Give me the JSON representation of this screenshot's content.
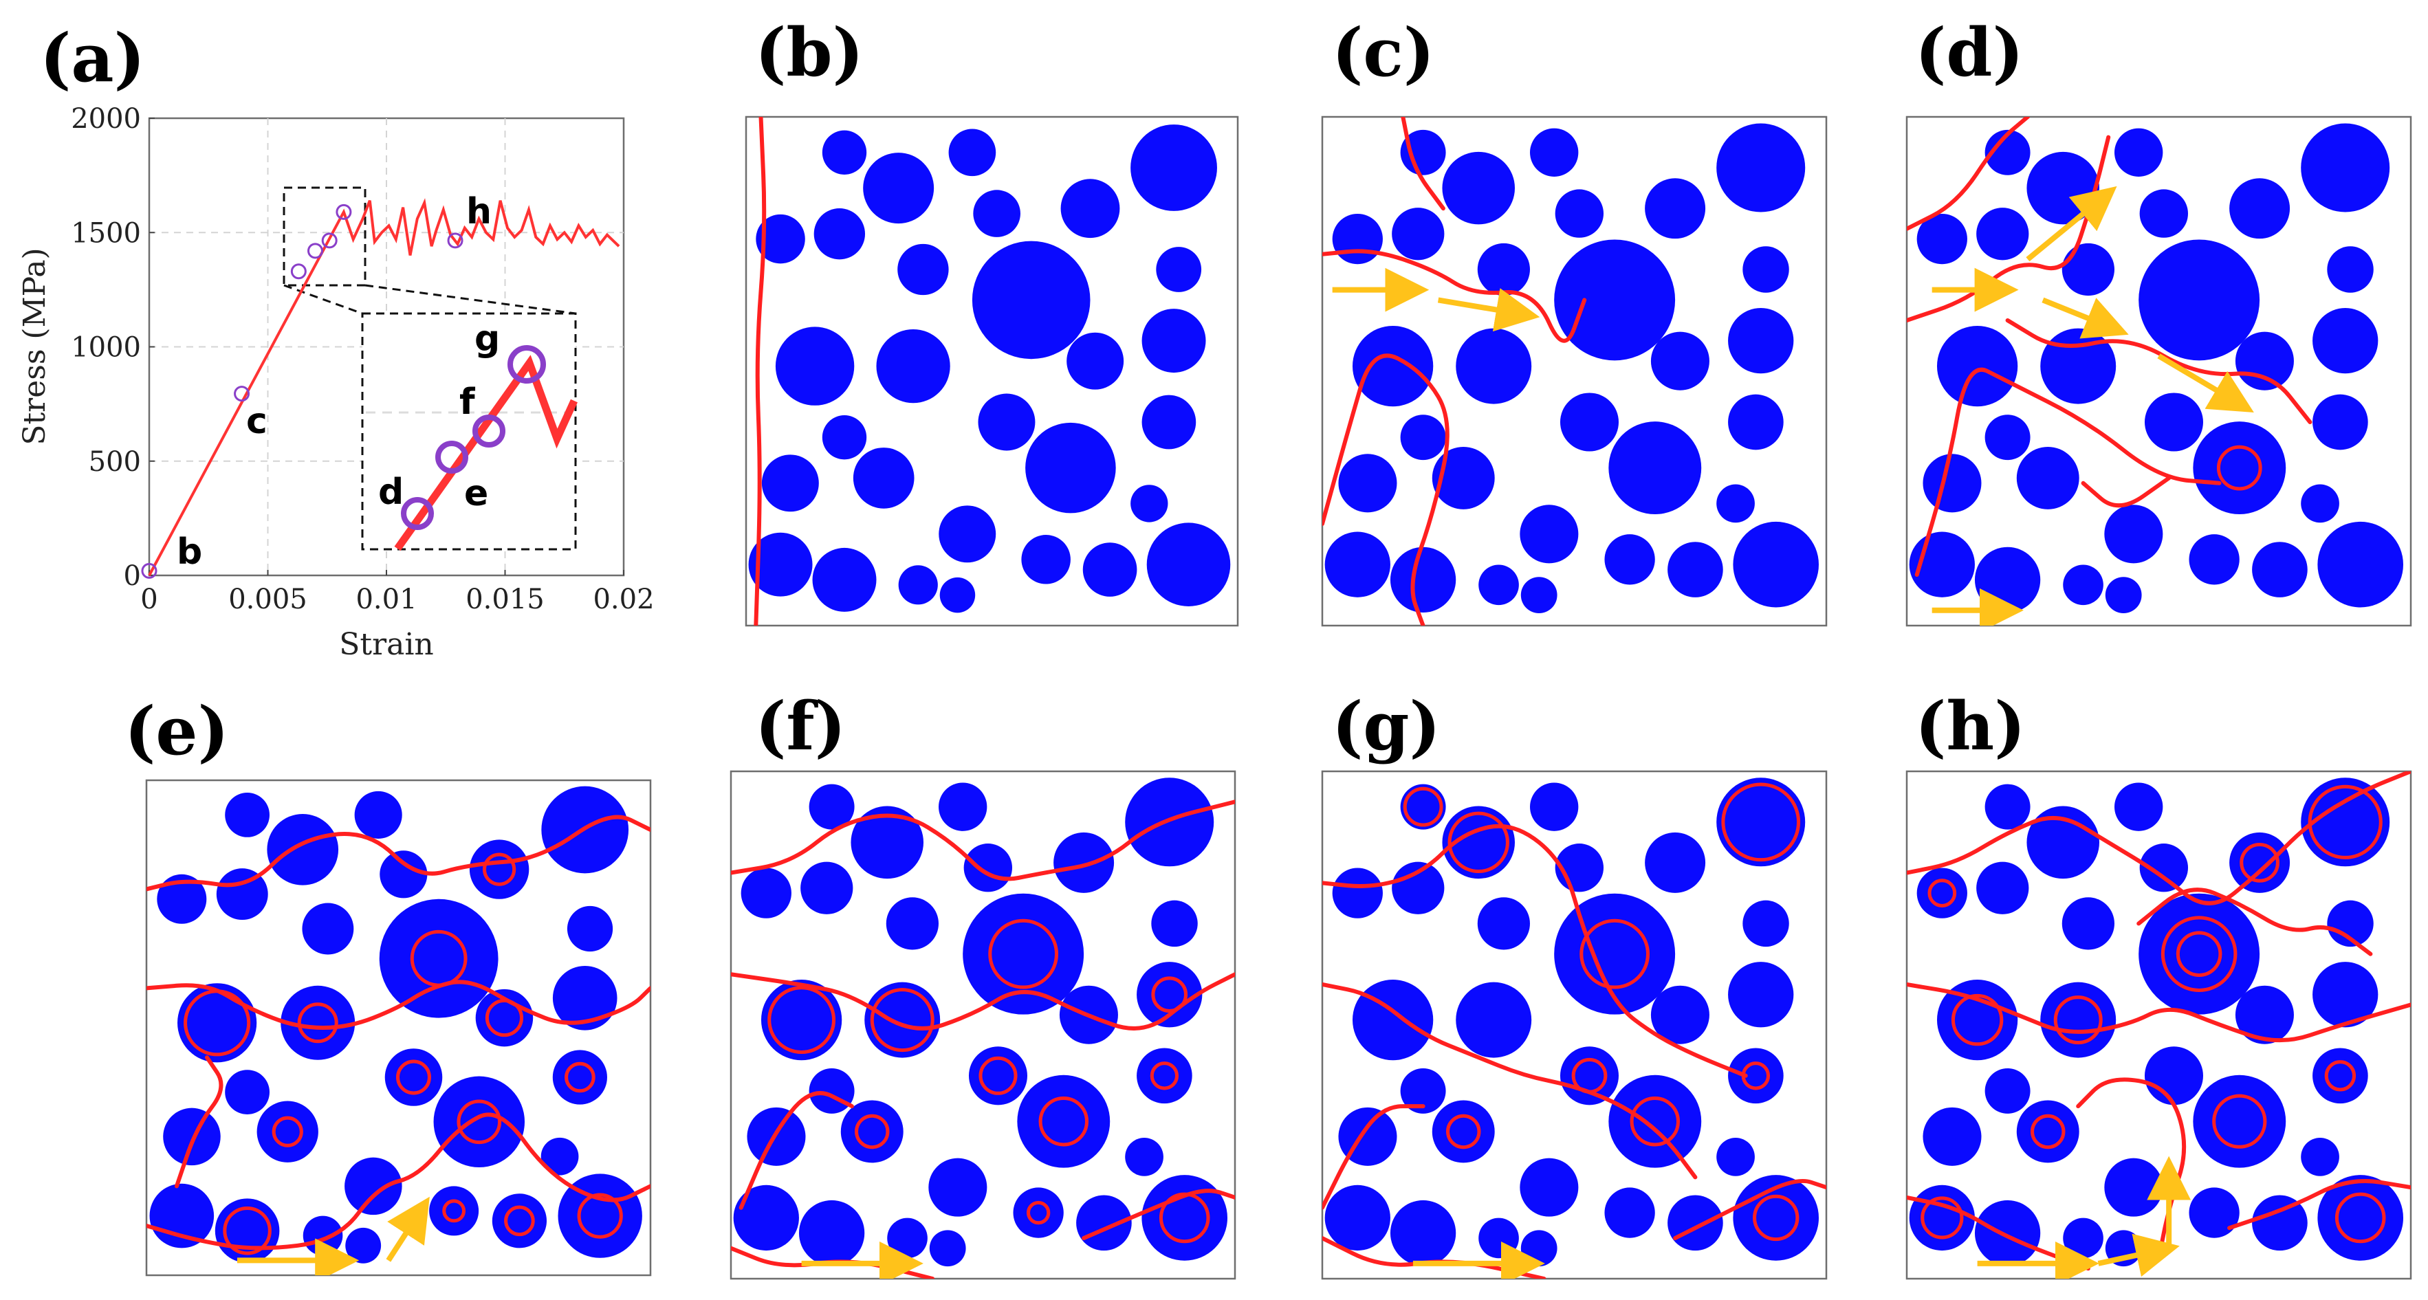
{
  "panels": {
    "a": "(a)",
    "b": "(b)",
    "c": "(c)",
    "d": "(d)",
    "e": "(e)",
    "f": "(f)",
    "g": "(g)",
    "h": "(h)"
  },
  "colors": {
    "particle": "#0a0aff",
    "crack": "#ff2020",
    "arrow": "#ffc21a",
    "marker": "#8a3fc9",
    "curve": "#ff3333"
  },
  "chart_data": {
    "type": "line",
    "xlabel": "Strain",
    "ylabel": "Stress (MPa)",
    "xlim": [
      0,
      0.02
    ],
    "ylim": [
      0,
      2000
    ],
    "xticks": [
      "0",
      "0.005",
      "0.01",
      "0.015",
      "0.02"
    ],
    "yticks": [
      "0",
      "500",
      "1000",
      "1500",
      "2000"
    ],
    "grid": true,
    "series": [
      {
        "x": [
          0,
          0.0082,
          0.0086,
          0.009,
          0.0093,
          0.0095,
          0.0098,
          0.0101,
          0.0104,
          0.0107,
          0.011,
          0.0113,
          0.0116,
          0.0119,
          0.0121,
          0.0124,
          0.0127,
          0.013,
          0.0133,
          0.0136,
          0.0139,
          0.0142,
          0.0145,
          0.0148,
          0.0151,
          0.0154,
          0.0157,
          0.016,
          0.0163,
          0.0166,
          0.0169,
          0.0172,
          0.0175,
          0.0178,
          0.0181,
          0.0184,
          0.0187,
          0.019,
          0.0193,
          0.0196,
          0.0198
        ],
        "y": [
          0,
          1590,
          1470,
          1560,
          1640,
          1460,
          1500,
          1530,
          1470,
          1610,
          1400,
          1560,
          1630,
          1440,
          1510,
          1600,
          1490,
          1450,
          1520,
          1480,
          1560,
          1500,
          1470,
          1640,
          1520,
          1480,
          1510,
          1600,
          1480,
          1450,
          1530,
          1470,
          1500,
          1460,
          1530,
          1480,
          1510,
          1450,
          1490,
          1460,
          1440
        ]
      }
    ],
    "markers": [
      {
        "x": 0.0,
        "y": 20,
        "label": "b"
      },
      {
        "x": 0.0039,
        "y": 795,
        "label": "c"
      },
      {
        "x": 0.0063,
        "y": 1330,
        "label": "d"
      },
      {
        "x": 0.007,
        "y": 1420,
        "label": "e"
      },
      {
        "x": 0.0076,
        "y": 1465,
        "label": "f"
      },
      {
        "x": 0.0082,
        "y": 1590,
        "label": "g"
      },
      {
        "x": 0.0129,
        "y": 1465,
        "label": "h"
      }
    ]
  }
}
